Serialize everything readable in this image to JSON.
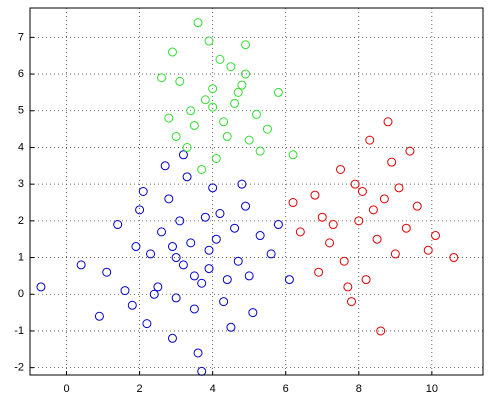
{
  "chart_data": {
    "type": "scatter",
    "xlim": [
      -1,
      11.4
    ],
    "ylim": [
      -2.2,
      7.8
    ],
    "xticks": [
      0,
      2,
      4,
      6,
      8,
      10
    ],
    "yticks": [
      -2,
      -1,
      0,
      1,
      2,
      3,
      4,
      5,
      6,
      7
    ],
    "grid": true,
    "series": [
      {
        "color": "#0000cc",
        "x": [
          3.2,
          4.1,
          2.5,
          3.8,
          5.0,
          1.9,
          3.5,
          2.8,
          4.6,
          3.0,
          2.2,
          4.9,
          3.7,
          1.4,
          5.6,
          3.3,
          2.6,
          4.3,
          3.9,
          1.1,
          2.9,
          4.7,
          3.1,
          0.4,
          6.1,
          3.6,
          2.0,
          4.0,
          5.3,
          2.4,
          3.4,
          4.5,
          1.6,
          2.7,
          3.9,
          5.8,
          0.9,
          3.0,
          4.2,
          2.3,
          -0.7,
          3.5,
          4.8,
          2.1,
          3.7,
          1.8,
          5.1,
          2.9,
          4.4,
          3.2
        ],
        "y": [
          0.8,
          1.5,
          0.2,
          2.1,
          0.5,
          1.3,
          -0.4,
          2.6,
          1.8,
          1.0,
          -0.8,
          2.4,
          0.3,
          1.9,
          1.1,
          3.2,
          1.7,
          -0.2,
          1.2,
          0.6,
          -1.2,
          0.9,
          2.0,
          0.8,
          0.4,
          -1.6,
          2.3,
          2.9,
          1.6,
          0.0,
          1.4,
          -0.9,
          0.1,
          3.5,
          0.7,
          1.9,
          -0.6,
          -0.1,
          2.2,
          1.1,
          0.2,
          0.5,
          3.0,
          2.8,
          -2.1,
          -0.3,
          -0.5,
          1.3,
          0.4,
          3.8
        ]
      },
      {
        "color": "#33dd33",
        "x": [
          4.0,
          3.5,
          4.7,
          5.2,
          3.1,
          4.4,
          2.8,
          4.9,
          3.8,
          5.5,
          4.2,
          3.3,
          4.6,
          5.8,
          2.6,
          3.9,
          4.1,
          5.0,
          3.6,
          4.8,
          2.9,
          4.3,
          5.3,
          3.4,
          4.5,
          3.0,
          4.0,
          6.2,
          3.7,
          4.9
        ],
        "y": [
          5.1,
          4.6,
          5.5,
          4.9,
          5.8,
          4.3,
          4.8,
          6.0,
          5.3,
          4.5,
          6.4,
          4.0,
          5.2,
          5.5,
          5.9,
          6.9,
          3.7,
          4.2,
          7.4,
          5.7,
          6.6,
          4.7,
          3.9,
          5.0,
          6.2,
          4.3,
          5.6,
          3.8,
          3.4,
          6.8
        ]
      },
      {
        "color": "#dd0000",
        "x": [
          8.0,
          7.2,
          8.7,
          9.3,
          7.6,
          8.4,
          6.8,
          9.0,
          7.9,
          10.1,
          8.2,
          7.0,
          8.9,
          9.6,
          6.4,
          7.5,
          8.5,
          9.9,
          7.8,
          8.1,
          6.9,
          9.4,
          8.6,
          7.3,
          10.6,
          8.3,
          7.7,
          9.1,
          6.2,
          8.8
        ],
        "y": [
          2.0,
          1.4,
          2.6,
          1.8,
          0.9,
          2.3,
          2.7,
          1.1,
          3.0,
          1.6,
          0.4,
          2.1,
          3.6,
          2.4,
          1.7,
          3.4,
          1.5,
          1.2,
          -0.2,
          2.8,
          0.6,
          3.9,
          -1.0,
          1.9,
          1.0,
          4.2,
          0.2,
          2.9,
          2.5,
          4.7
        ]
      }
    ]
  }
}
